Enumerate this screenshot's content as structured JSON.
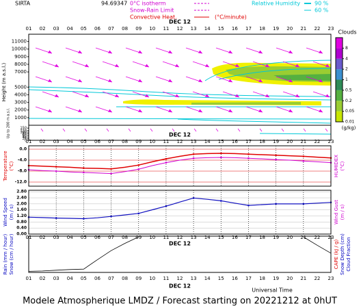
{
  "header": {
    "station": "SIRTA",
    "station_code": "94.69347",
    "isotherm": "0°C isotherm",
    "snow_rain": "Snow-Rain Limit",
    "convective": "Convective Heat.",
    "convective_unit": "(°C/minute)",
    "humidity": "Relative Humidity",
    "humidity_levels": [
      "90 %",
      "60 %"
    ]
  },
  "date": "DEC 12",
  "x_title": "Universal Time",
  "footer": "Modele Atmospherique LMDZ / Forecast starting on 20221212 at 0hUT",
  "chart_data": [
    {
      "type": "clouds",
      "categories": [
        "01",
        "02",
        "03",
        "04",
        "05",
        "06",
        "07",
        "08",
        "09",
        "10",
        "11",
        "12",
        "13",
        "14",
        "15",
        "16",
        "17",
        "18",
        "19",
        "20",
        "21",
        "22",
        "23"
      ],
      "ylabel": "Height (m a.s.l.)",
      "ylim": [
        0,
        11500
      ],
      "yticks": [
        1000,
        2000,
        3000,
        4000,
        5000,
        7000,
        8000,
        9000,
        10000,
        11000
      ],
      "low_ylabel": "Up to 200 m a.s.l.",
      "low_ylim": [
        0,
        160
      ],
      "low_yticks": [
        0,
        20,
        40,
        60,
        80,
        100,
        120,
        150
      ],
      "colorbar": {
        "title": "Clouds",
        "unit": "(g/kg)",
        "ticks": [
          0.01,
          0.05,
          0.2,
          0.5,
          1,
          2,
          4,
          8
        ],
        "colors": [
          "#f0f000",
          "#c8e600",
          "#9acd32",
          "#55b040",
          "#2e8b57",
          "#3b8fd0",
          "#6a5acd",
          "#b000d0",
          "#e000e0"
        ]
      }
    },
    {
      "type": "line",
      "categories": [
        "01",
        "02",
        "03",
        "04",
        "05",
        "06",
        "07",
        "08",
        "09",
        "10",
        "11",
        "12",
        "13",
        "14",
        "15",
        "16",
        "17",
        "18",
        "19",
        "20",
        "21",
        "22",
        "23"
      ],
      "ylim": [
        -13.5,
        1.25
      ],
      "yticks": [
        {
          "value": 0,
          "label": "0.0"
        },
        {
          "value": -4,
          "label": "-4.0"
        },
        {
          "value": -8,
          "label": "-8.0"
        },
        {
          "value": -12,
          "label": "-12.0"
        }
      ],
      "left_labels": [
        {
          "text": "Temperature",
          "color": "#e00000"
        },
        {
          "text": "(°C)",
          "color": "#e00000"
        }
      ],
      "right_labels": [
        {
          "text": "HUMIDEX",
          "color": "#d000d0"
        },
        {
          "text": "(°C)",
          "color": "#d000d0"
        }
      ],
      "series": [
        {
          "name": "Temperature",
          "color": "#e00000",
          "width": 1.5,
          "values": [
            -6.0,
            -6.2,
            -6.4,
            -6.6,
            -6.9,
            -7.0,
            -7.2,
            -6.6,
            -5.8,
            -4.6,
            -3.5,
            -2.6,
            -1.8,
            -1.6,
            -1.5,
            -1.6,
            -1.8,
            -2.0,
            -2.2,
            -2.4,
            -2.6,
            -2.9,
            -3.2
          ]
        },
        {
          "name": "HUMIDEX",
          "color": "#d000d0",
          "width": 1,
          "values": [
            -7.5,
            -7.8,
            -8.0,
            -8.3,
            -8.5,
            -8.7,
            -8.9,
            -8.2,
            -7.3,
            -6.0,
            -4.9,
            -4.0,
            -3.3,
            -3.1,
            -3.0,
            -3.1,
            -3.3,
            -3.5,
            -3.8,
            -4.0,
            -4.3,
            -4.6,
            -4.9
          ]
        }
      ]
    },
    {
      "type": "line",
      "categories": [
        "01",
        "02",
        "03",
        "04",
        "05",
        "06",
        "07",
        "08",
        "09",
        "10",
        "11",
        "12",
        "13",
        "14",
        "15",
        "16",
        "17",
        "18",
        "19",
        "20",
        "21",
        "22",
        "23"
      ],
      "ylim": [
        0,
        2.9
      ],
      "yticks": [
        {
          "value": 0,
          "label": "0.00"
        },
        {
          "value": 0.4,
          "label": "0.40"
        },
        {
          "value": 0.8,
          "label": "0.80"
        },
        {
          "value": 1.2,
          "label": "1.20"
        },
        {
          "value": 1.6,
          "label": "1.60"
        },
        {
          "value": 2,
          "label": "2.00"
        },
        {
          "value": 2.4,
          "label": "2.40"
        },
        {
          "value": 2.8,
          "label": "2.80"
        }
      ],
      "left_labels": [
        {
          "text": "Wind Speed",
          "color": "#0000c0"
        },
        {
          "text": "(m / s)",
          "color": "#0000c0"
        }
      ],
      "right_labels": [
        {
          "text": "Wind Gust",
          "color": "#d000d0"
        },
        {
          "text": "(m / s)",
          "color": "#d000d0"
        }
      ],
      "series": [
        {
          "name": "Wind Speed",
          "color": "#1010c0",
          "width": 1.2,
          "values": [
            1.12,
            1.09,
            1.06,
            1.04,
            1.02,
            1.08,
            1.17,
            1.27,
            1.37,
            1.61,
            1.85,
            2.12,
            2.39,
            2.3,
            2.2,
            2.05,
            1.9,
            1.95,
            2.0,
            2.0,
            2.0,
            2.05,
            2.1
          ]
        }
      ]
    },
    {
      "type": "line",
      "categories": [
        "01",
        "02",
        "03",
        "04",
        "05",
        "06",
        "07",
        "08",
        "09",
        "10",
        "11",
        "12",
        "13",
        "14",
        "15",
        "16",
        "17",
        "18",
        "19",
        "20",
        "21",
        "22",
        "23"
      ],
      "ylim": [
        0,
        1
      ],
      "left_labels": [
        {
          "text": "Rain (mm / hour)",
          "color": "#0000c0"
        },
        {
          "text": "Snow (cm / hour)",
          "color": "#0000c0"
        }
      ],
      "right_labels": [
        {
          "text": "CAPE (kJ / g)",
          "color": "#e00000"
        },
        {
          "text": "Snow Depth (cm)",
          "color": "#0000c0"
        },
        {
          "text": "Cloud Fraction",
          "color": "#0000c0"
        }
      ],
      "series": [
        {
          "name": "Cloud Fraction",
          "color": "#000000",
          "width": 0.8,
          "values": [
            0.03,
            0.04,
            0.06,
            0.08,
            0.09,
            0.35,
            0.6,
            0.8,
            0.98,
            null,
            null,
            null,
            null,
            null,
            null,
            null,
            null,
            null,
            null,
            null,
            0.98,
            0.75,
            0.53
          ]
        }
      ]
    }
  ]
}
